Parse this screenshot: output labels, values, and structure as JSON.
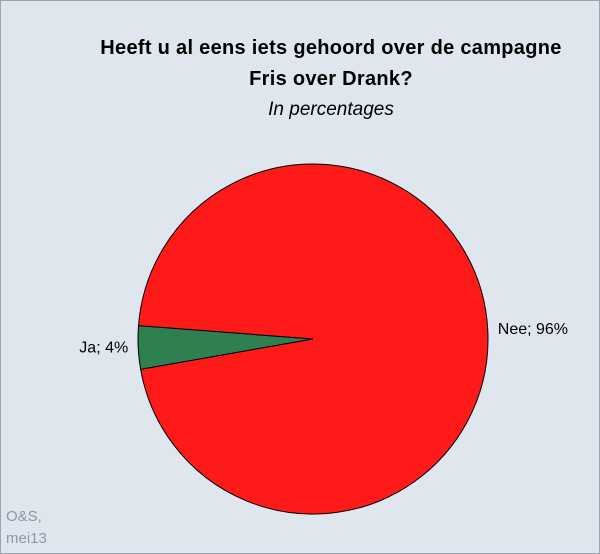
{
  "chart_data": {
    "type": "pie",
    "title": "Heeft u al eens iets gehoord over de campagne Fris over Drank?",
    "subtitle": "In percentages",
    "note": "O&S, mei13",
    "categories": [
      "Ja",
      "Nee"
    ],
    "values": [
      4,
      96
    ],
    "value_labels": [
      "Ja; 4%",
      "Nee; 96%"
    ],
    "colors": [
      "#2e8050",
      "#ff1a1a"
    ]
  }
}
